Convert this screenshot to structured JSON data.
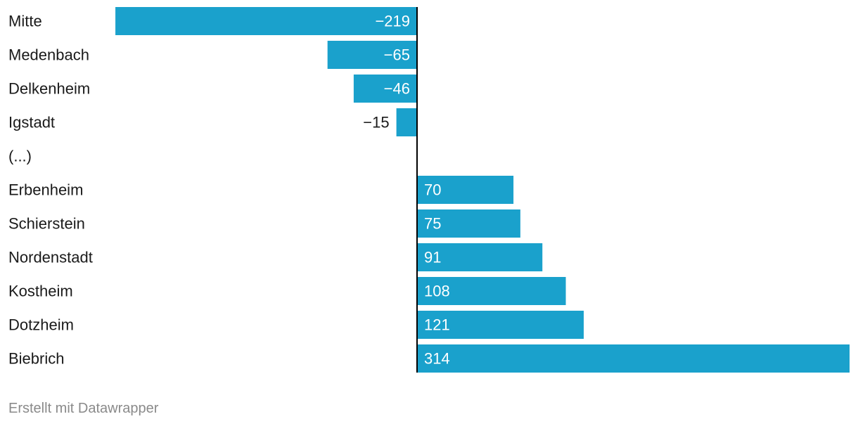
{
  "chart_data": {
    "type": "bar",
    "orientation": "horizontal",
    "categories": [
      "Mitte",
      "Medenbach",
      "Delkenheim",
      "Igstadt",
      "(...)",
      "Erbenheim",
      "Schierstein",
      "Nordenstadt",
      "Kostheim",
      "Dotzheim",
      "Biebrich"
    ],
    "values": [
      -219,
      -65,
      -46,
      -15,
      null,
      70,
      75,
      91,
      108,
      121,
      314
    ],
    "value_labels": [
      "−219",
      "−65",
      "−46",
      "−15",
      "",
      "70",
      "75",
      "91",
      "108",
      "121",
      "314"
    ],
    "bar_color": "#1aa1cc",
    "zero_line_color": "#000000"
  },
  "footer": {
    "credit": "Erstellt mit Datawrapper"
  }
}
